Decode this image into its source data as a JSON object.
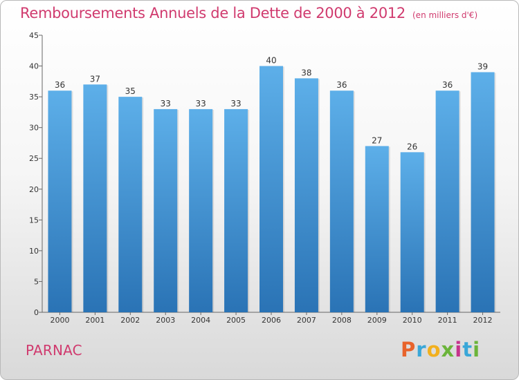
{
  "title": "Remboursements Annuels de la Dette de 2000 à 2012",
  "unit": "(en milliers d'€)",
  "commune": "PARNAC",
  "logo": {
    "text": "Proxiti",
    "colors": [
      "#e8632b",
      "#3aa7d8",
      "#f2b01e",
      "#6bb43a",
      "#c6338c",
      "#3aa7d8",
      "#6bb43a"
    ]
  },
  "colors": {
    "bar": "#3f95d8",
    "bar_light": "#5dafe9",
    "bar_dark": "#2a73b5",
    "title": "#d03a6e"
  },
  "chart_data": {
    "type": "bar",
    "categories": [
      "2000",
      "2001",
      "2002",
      "2003",
      "2004",
      "2005",
      "2006",
      "2007",
      "2008",
      "2009",
      "2010",
      "2011",
      "2012"
    ],
    "values": [
      36,
      37,
      35,
      33,
      33,
      33,
      40,
      38,
      36,
      27,
      26,
      36,
      39
    ],
    "yticks": [
      0,
      5,
      10,
      15,
      20,
      25,
      30,
      35,
      40,
      45
    ],
    "ylim": [
      0,
      45
    ],
    "grid": false,
    "xlabel": "",
    "ylabel": ""
  }
}
